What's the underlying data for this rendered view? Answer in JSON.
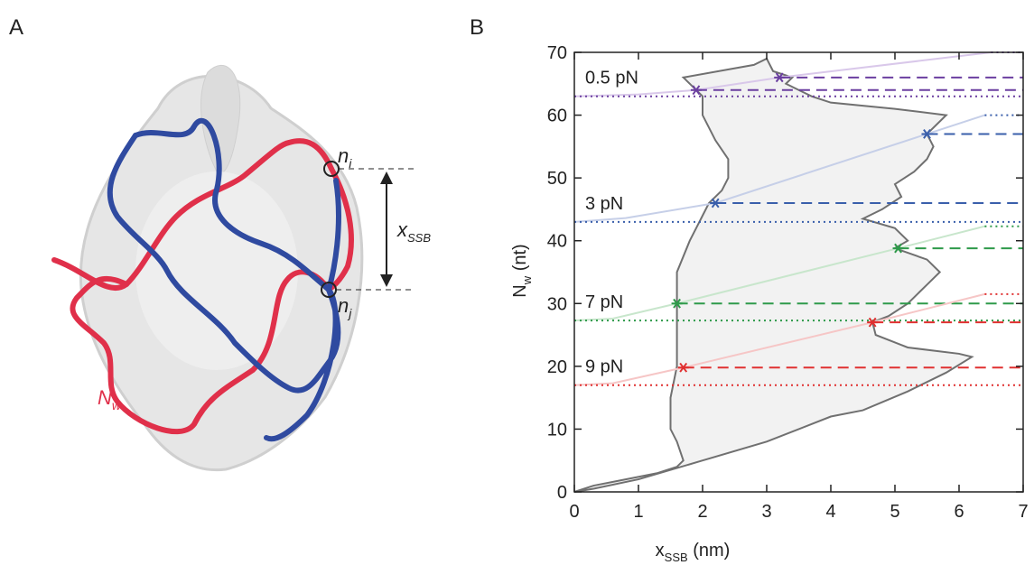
{
  "panel_a": {
    "label": "A",
    "label_ni": {
      "main": "n",
      "sub": "i"
    },
    "label_nj": {
      "main": "n",
      "sub": "j"
    },
    "label_xssb": {
      "main": "x",
      "sub": "SSB"
    },
    "label_nw": {
      "main": "N",
      "sub": "w"
    }
  },
  "chart_data": {
    "type": "force-extension",
    "panel_label": "B",
    "xlabel": {
      "main": "x",
      "sub": "SSB",
      "unit": " (nm)"
    },
    "ylabel": {
      "main": "N",
      "sub": "w",
      "unit": " (nt)"
    },
    "xlim": [
      0,
      7
    ],
    "ylim": [
      0,
      70
    ],
    "xticks": [
      0,
      1,
      2,
      3,
      4,
      5,
      6,
      7
    ],
    "yticks": [
      0,
      10,
      20,
      30,
      40,
      50,
      60,
      70
    ],
    "region": {
      "color": "#f2f2f2",
      "edge_color": "#707070",
      "x": [
        0,
        0.3,
        0.8,
        1.3,
        1.6,
        1.7,
        1.6,
        1.5,
        1.5,
        1.6,
        1.6,
        1.6,
        1.6,
        1.8,
        1.9,
        2.0,
        2.1,
        2.3,
        2.4,
        2.4,
        2.2,
        2.0,
        2.0,
        1.7,
        2.8,
        3.0,
        3.1,
        3.4,
        3.3,
        3.5,
        3.7,
        4.0,
        5.0,
        5.8,
        5.6,
        5.5,
        5.6,
        5.5,
        5.3,
        5.0,
        5.1,
        4.8,
        4.5,
        5.0,
        5.2,
        5.0,
        5.5,
        5.7,
        5.5,
        5.2,
        4.9,
        4.65,
        4.7,
        5.2,
        6.0,
        6.2,
        5.8,
        5.2,
        4.5,
        4.0,
        3.0,
        2.0,
        1.0,
        0.3
      ],
      "y": [
        0,
        1,
        2,
        3,
        4,
        5,
        8,
        10,
        15,
        20,
        25,
        30,
        35,
        40,
        42,
        44,
        46,
        48,
        50,
        53,
        56,
        60,
        63,
        66,
        68,
        69,
        67,
        66,
        65,
        64,
        63,
        62,
        61,
        60,
        58,
        57,
        55,
        53,
        51,
        49,
        47,
        45,
        43.5,
        42,
        40,
        38.8,
        37,
        35,
        33,
        30,
        28,
        27,
        25,
        23,
        22,
        21.5,
        19,
        16,
        13,
        12,
        8,
        5,
        2,
        0.5
      ]
    },
    "series": [
      {
        "name": "0.5 pN",
        "color": "#6b3fa0",
        "fit_color": "#d9c8ea",
        "level": 63,
        "top_level": 70,
        "top_level_x": 6.5,
        "fit_x": [
          0,
          1,
          1.9,
          3.2,
          6.5
        ],
        "fit_y": [
          63,
          63.3,
          64,
          66,
          70
        ],
        "stars_x": [
          1.9,
          3.2
        ],
        "stars_y": [
          64,
          66
        ]
      },
      {
        "name": "3 pN",
        "color": "#3a5fab",
        "fit_color": "#c6cfe8",
        "level": 43,
        "top_level": 60,
        "top_level_x": 6.4,
        "fit_x": [
          0,
          0.8,
          2.2,
          5.5,
          6.4
        ],
        "fit_y": [
          43,
          43.6,
          46,
          57,
          60
        ],
        "stars_x": [
          2.2,
          5.5
        ],
        "stars_y": [
          46,
          57
        ]
      },
      {
        "name": "7 pN",
        "color": "#2e9a4a",
        "fit_color": "#c8e6cc",
        "level": 27.3,
        "top_level": 42.3,
        "top_level_x": 6.4,
        "fit_x": [
          0,
          0.6,
          1.6,
          5.05,
          6.4
        ],
        "fit_y": [
          27.3,
          27.6,
          30,
          38.8,
          42.3
        ],
        "stars_x": [
          1.6,
          5.05
        ],
        "stars_y": [
          30,
          38.8
        ]
      },
      {
        "name": "9 pN",
        "color": "#e03030",
        "fit_color": "#f6c6c6",
        "level": 17,
        "top_level": 31.5,
        "top_level_x": 6.4,
        "fit_x": [
          0,
          0.6,
          1.7,
          4.65,
          6.4
        ],
        "fit_y": [
          17,
          17.3,
          19.8,
          27,
          31.5
        ],
        "stars_x": [
          1.7,
          4.65
        ],
        "stars_y": [
          19.8,
          27
        ]
      }
    ]
  }
}
